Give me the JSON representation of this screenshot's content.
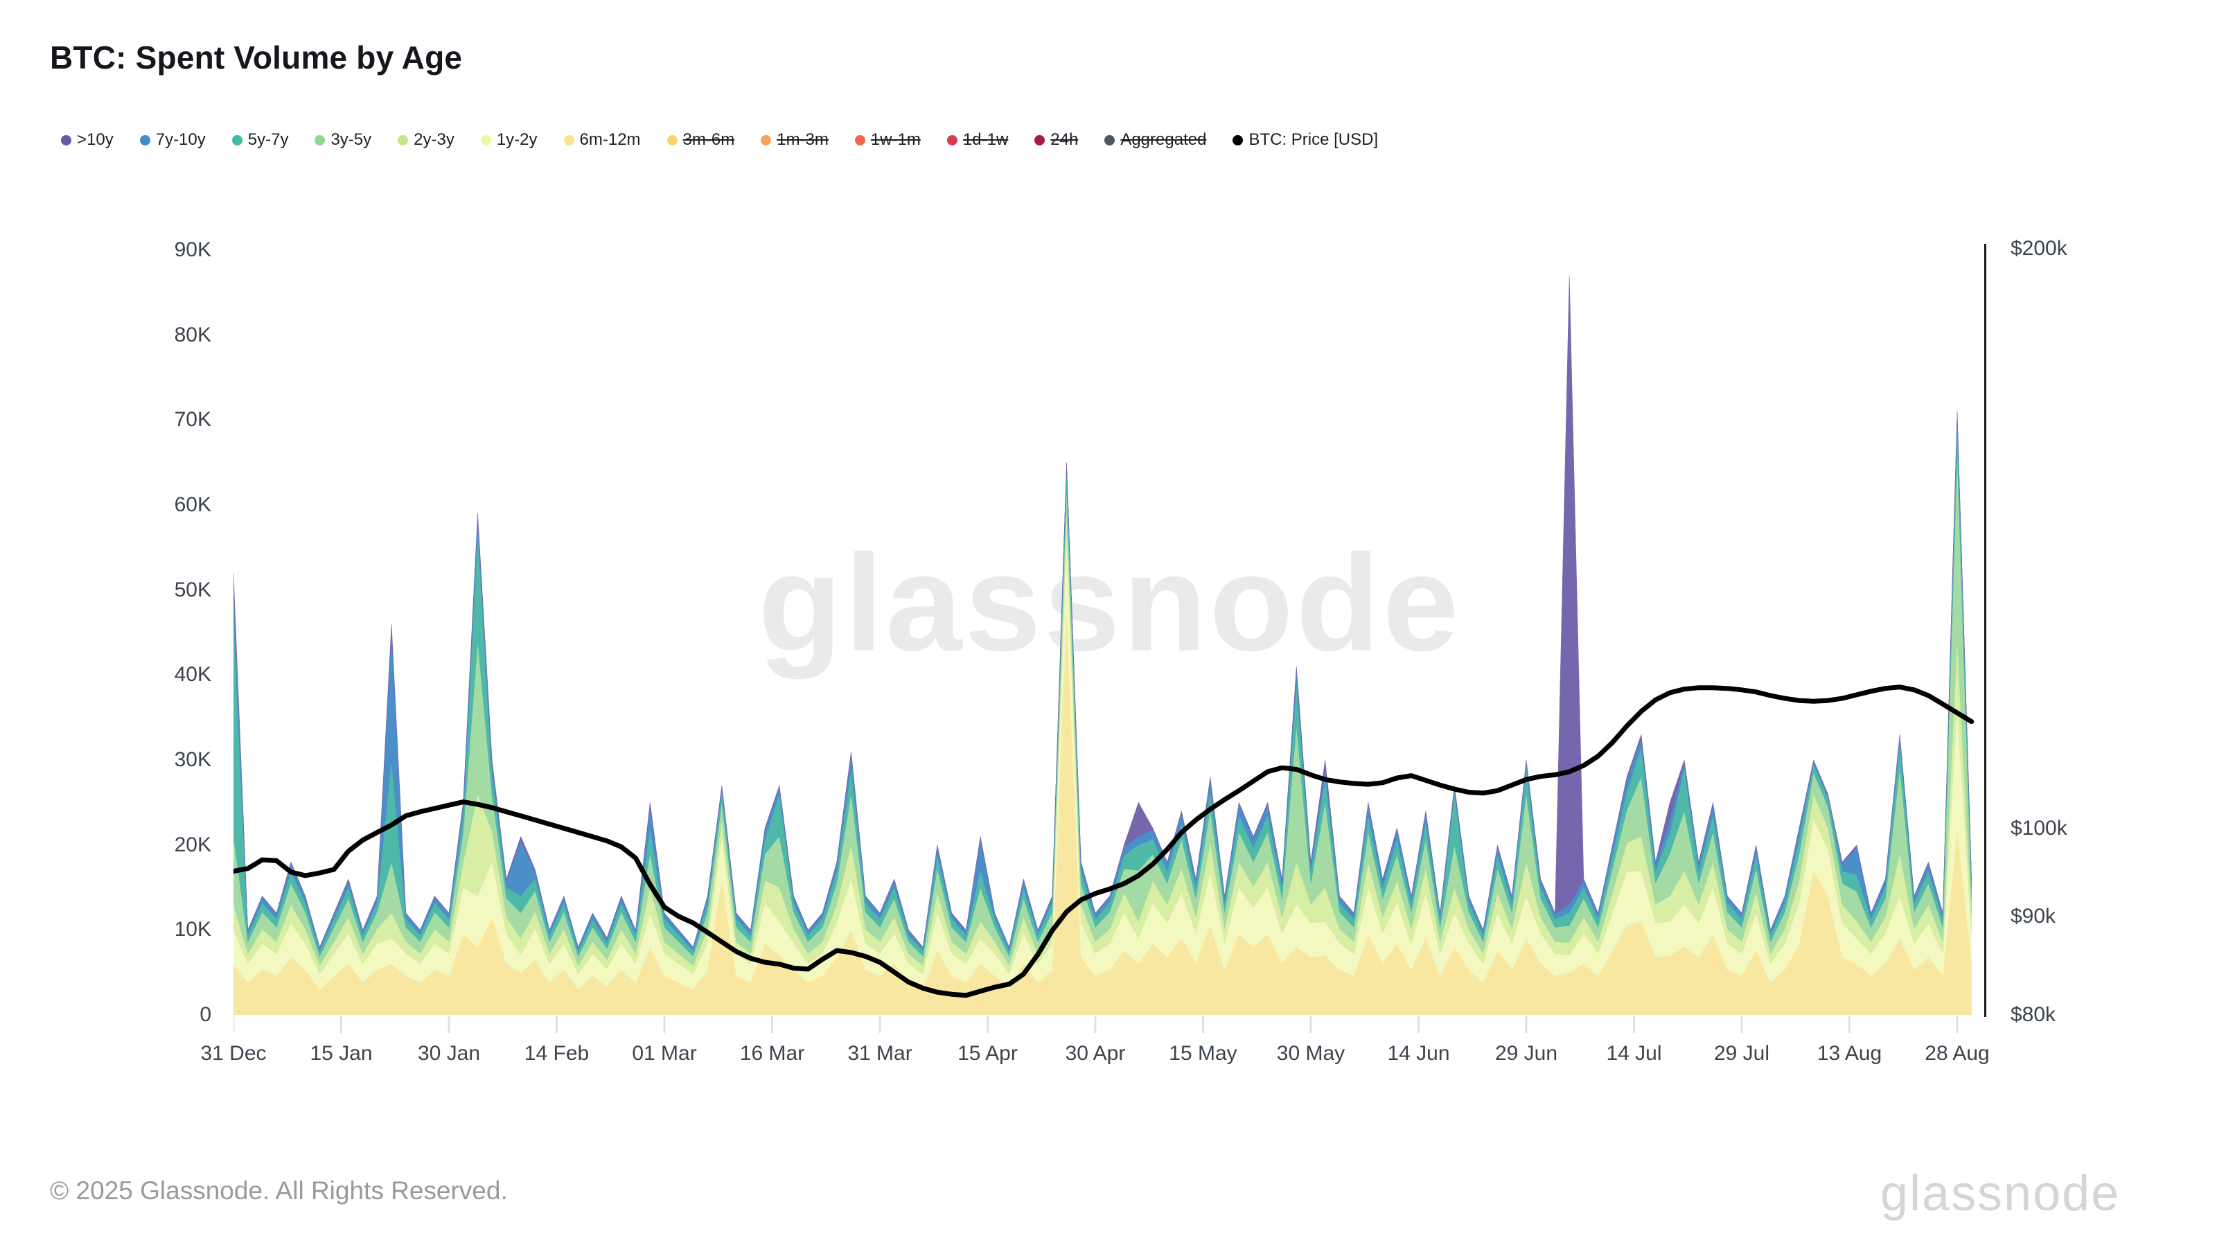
{
  "title": "BTC: Spent Volume by Age",
  "watermark": "glassnode",
  "footer": {
    "copyright": "© 2025 Glassnode. All Rights Reserved.",
    "logo": "glassnode"
  },
  "legend": [
    {
      "label": ">10y",
      "color": "#6859A8",
      "struck": false
    },
    {
      "label": "7y-10y",
      "color": "#3D8EC6",
      "struck": false
    },
    {
      "label": "5y-7y",
      "color": "#3FBEA3",
      "struck": false
    },
    {
      "label": "3y-5y",
      "color": "#8FD68E",
      "struck": false
    },
    {
      "label": "2y-3y",
      "color": "#C5E787",
      "struck": false
    },
    {
      "label": "1y-2y",
      "color": "#EDF7A3",
      "struck": false
    },
    {
      "label": "6m-12m",
      "color": "#F8E58B",
      "struck": false
    },
    {
      "label": "3m-6m",
      "color": "#FBD36E",
      "struck": true
    },
    {
      "label": "1m-3m",
      "color": "#F9A05A",
      "struck": true
    },
    {
      "label": "1w-1m",
      "color": "#F2674B",
      "struck": true
    },
    {
      "label": "1d-1w",
      "color": "#D63C54",
      "struck": true
    },
    {
      "label": "24h",
      "color": "#A21D44",
      "struck": true
    },
    {
      "label": "Aggregated",
      "color": "#4B5563",
      "struck": true
    },
    {
      "label": "BTC: Price [USD]",
      "color": "#000000",
      "struck": false
    }
  ],
  "chart_data": {
    "type": "area",
    "stacked": true,
    "title": "BTC: Spent Volume by Age",
    "x_start_label": "31 Dec",
    "day_step": 2,
    "x_ticks": [
      {
        "label": "31 Dec",
        "day": 0
      },
      {
        "label": "15 Jan",
        "day": 15
      },
      {
        "label": "30 Jan",
        "day": 30
      },
      {
        "label": "14 Feb",
        "day": 45
      },
      {
        "label": "01 Mar",
        "day": 60
      },
      {
        "label": "16 Mar",
        "day": 75
      },
      {
        "label": "31 Mar",
        "day": 90
      },
      {
        "label": "15 Apr",
        "day": 105
      },
      {
        "label": "30 Apr",
        "day": 120
      },
      {
        "label": "15 May",
        "day": 135
      },
      {
        "label": "30 May",
        "day": 150
      },
      {
        "label": "14 Jun",
        "day": 165
      },
      {
        "label": "29 Jun",
        "day": 180
      },
      {
        "label": "14 Jul",
        "day": 195
      },
      {
        "label": "29 Jul",
        "day": 210
      },
      {
        "label": "13 Aug",
        "day": 225
      },
      {
        "label": "28 Aug",
        "day": 240
      }
    ],
    "y_left_ticks": [
      {
        "label": "0",
        "value": 0
      },
      {
        "label": "10K",
        "value": 10
      },
      {
        "label": "20K",
        "value": 20
      },
      {
        "label": "30K",
        "value": 30
      },
      {
        "label": "40K",
        "value": 40
      },
      {
        "label": "50K",
        "value": 50
      },
      {
        "label": "60K",
        "value": 60
      },
      {
        "label": "70K",
        "value": 70
      },
      {
        "label": "80K",
        "value": 80
      },
      {
        "label": "90K",
        "value": 90
      }
    ],
    "y_left_max": 90,
    "y_left_unit": "K BTC",
    "y_right_scale": "log",
    "y_right_ticks": [
      {
        "label": "$80k",
        "value": 80
      },
      {
        "label": "$90k",
        "value": 90
      },
      {
        "label": "$100k",
        "value": 100
      },
      {
        "label": "$200k",
        "value": 200
      }
    ],
    "grid": false,
    "legend_position": "top",
    "series": [
      {
        "name": "6m-12m",
        "color": "#F8E7A0",
        "values": [
          6,
          3.8,
          5.3,
          4.6,
          6.8,
          5.3,
          3,
          4.6,
          6.1,
          3.8,
          5.3,
          6,
          4.6,
          3.8,
          5.3,
          4.6,
          9.5,
          8,
          11.4,
          6.1,
          5,
          6.5,
          3.8,
          5.3,
          3,
          4.6,
          3.4,
          5.3,
          3.8,
          8,
          4.6,
          3.8,
          3,
          5.3,
          16,
          4.6,
          3.8,
          8.4,
          7,
          5.3,
          3.8,
          4.6,
          6.8,
          10,
          5.3,
          4.6,
          6.1,
          3.8,
          3,
          7.6,
          4.6,
          3.8,
          6,
          4.6,
          3,
          6.1,
          3.8,
          5.3,
          48,
          6.8,
          4.6,
          5.3,
          7.6,
          6,
          8.4,
          6.8,
          9.1,
          6.1,
          10.6,
          5.3,
          9.5,
          8,
          9.5,
          6.1,
          8,
          6.8,
          7,
          5.3,
          4.6,
          9.5,
          6.1,
          8.4,
          5.3,
          9.1,
          4.6,
          8,
          5.3,
          3.8,
          7.6,
          5.3,
          9,
          6.1,
          4.6,
          5,
          6.1,
          4.6,
          7.6,
          10.6,
          11,
          6.8,
          7,
          8,
          6.8,
          9.5,
          5.3,
          4.6,
          7.6,
          3.8,
          5.3,
          8.4,
          17,
          14,
          6.8,
          6,
          4.6,
          6.1,
          9,
          5.3,
          6.8,
          4.6,
          22,
          6.1
        ]
      },
      {
        "name": "1y-2y",
        "color": "#F3F8C0",
        "values": [
          4,
          2.2,
          3.1,
          2.6,
          4,
          3.1,
          1.8,
          2.6,
          3.5,
          2.2,
          3.1,
          3,
          2.6,
          2.2,
          3.1,
          2.6,
          5.5,
          6,
          6.6,
          3.5,
          2,
          3.7,
          2.2,
          3.1,
          1.8,
          2.6,
          2,
          3.1,
          2.2,
          4,
          2.6,
          2.2,
          1.8,
          3.1,
          5,
          2.6,
          2.2,
          4.8,
          4,
          3.1,
          2.2,
          2.6,
          4,
          6,
          3.1,
          2.6,
          3.5,
          2.2,
          1.8,
          4.4,
          2.6,
          2.2,
          3,
          2.6,
          1.8,
          3.5,
          2.2,
          3.1,
          8,
          4,
          2.6,
          3.1,
          4.4,
          3,
          4.8,
          4,
          5.3,
          3.5,
          6.2,
          3.1,
          5.5,
          4.6,
          5.5,
          3.5,
          5,
          4,
          4,
          3.1,
          2.6,
          5.5,
          3.5,
          4.8,
          3.1,
          5.3,
          2.6,
          4,
          3.1,
          2.2,
          4.4,
          3.1,
          5,
          3.5,
          2.6,
          2,
          3.5,
          2.6,
          4.4,
          6.2,
          6,
          4,
          4,
          5,
          4,
          5.5,
          3.1,
          2.6,
          4.4,
          2.2,
          3.1,
          4.8,
          6,
          5.5,
          4,
          3,
          2.6,
          3.5,
          5,
          3.1,
          4,
          2.6,
          14,
          3.5
        ]
      },
      {
        "name": "2y-3y",
        "color": "#D7EEA4",
        "values": [
          3,
          1.2,
          1.7,
          1.4,
          2.2,
          1.7,
          1,
          1.4,
          1.9,
          1.2,
          1.7,
          3,
          1.4,
          1.2,
          1.7,
          1.4,
          3,
          12,
          3.6,
          1.9,
          2,
          2,
          1.2,
          1.7,
          1,
          1.4,
          1.1,
          1.7,
          1.2,
          3,
          1.4,
          1.2,
          1,
          1.7,
          2,
          1.4,
          1.2,
          2.6,
          4,
          1.7,
          1.2,
          1.4,
          2.2,
          4,
          1.7,
          1.4,
          1.9,
          1.2,
          1,
          2.4,
          1.4,
          1.2,
          2,
          1.4,
          1,
          1.9,
          1.2,
          1.7,
          3,
          2.2,
          1.4,
          1.7,
          2.4,
          2,
          2.6,
          2.2,
          2.9,
          1.9,
          3.4,
          1.7,
          3,
          2.5,
          3,
          1.9,
          5,
          2.2,
          4,
          1.7,
          1.4,
          3,
          1.9,
          2.6,
          1.7,
          2.9,
          1.4,
          3,
          1.7,
          1.2,
          2.4,
          1.7,
          4,
          1.9,
          1.4,
          1.5,
          1.9,
          1.4,
          2.4,
          3.4,
          4,
          2.2,
          3,
          4,
          2.2,
          3,
          1.7,
          1.4,
          2.4,
          1.2,
          1.7,
          2.6,
          3,
          2.5,
          2.2,
          2,
          1.4,
          1.9,
          5,
          1.7,
          2.2,
          1.4,
          8,
          1.9
        ]
      },
      {
        "name": "3y-5y",
        "color": "#A4DBA4",
        "values": [
          8,
          1.4,
          2,
          1.7,
          2.5,
          2,
          1.1,
          1.7,
          2.2,
          1.4,
          2,
          6,
          1.7,
          1.4,
          2,
          1.7,
          3.5,
          18,
          4.2,
          2.2,
          3,
          2.4,
          1.4,
          2,
          1.1,
          1.7,
          1.3,
          2,
          1.4,
          4,
          1.7,
          1.4,
          1.1,
          2,
          2,
          1.7,
          1.4,
          3.1,
          6,
          2,
          1.4,
          1.7,
          2.5,
          6,
          2,
          1.7,
          2.2,
          1.4,
          1.1,
          2.8,
          1.7,
          1.4,
          4,
          1.7,
          1.1,
          2.2,
          1.4,
          2,
          3,
          2.5,
          1.7,
          2,
          2.8,
          6,
          3.1,
          2.5,
          3.4,
          2.2,
          3.9,
          2,
          3.5,
          2.9,
          3.5,
          2.2,
          16,
          2.5,
          10,
          2,
          1.7,
          3.5,
          2.2,
          3.1,
          2,
          3.4,
          1.7,
          5,
          2,
          1.4,
          2.8,
          2,
          8,
          2.2,
          1.7,
          2,
          2.2,
          1.7,
          2.8,
          3.9,
          7,
          2.5,
          5,
          7,
          2.5,
          3.5,
          2,
          1.7,
          2.8,
          1.4,
          2,
          3.1,
          2.5,
          2.5,
          2.5,
          3.5,
          1.7,
          2.2,
          10,
          2,
          2.5,
          1.7,
          22,
          2.2
        ]
      },
      {
        "name": "5y-7y",
        "color": "#4EB9A9",
        "values": [
          26,
          0.8,
          1.1,
          1,
          1.4,
          1.1,
          0.6,
          1,
          1.3,
          0.8,
          1.1,
          12,
          1,
          0.8,
          1.1,
          1,
          2,
          13,
          2.4,
          1.3,
          2,
          1.4,
          0.8,
          1.1,
          0.6,
          1,
          0.7,
          1.1,
          0.8,
          3,
          1,
          0.8,
          0.6,
          1.1,
          1.2,
          1,
          0.8,
          1.8,
          5,
          1.1,
          0.8,
          1,
          1.4,
          3,
          1.1,
          1,
          1.3,
          0.8,
          0.6,
          1.6,
          1,
          0.8,
          2,
          1,
          0.6,
          1.3,
          0.8,
          1.1,
          2,
          1.4,
          1,
          1.1,
          1.6,
          3,
          1.8,
          1.4,
          1.9,
          1.3,
          2.2,
          1.1,
          2,
          1.7,
          2,
          1.3,
          5,
          1.4,
          3,
          1.1,
          1,
          2,
          1.3,
          1.8,
          1.1,
          1.9,
          1,
          6,
          1.1,
          0.8,
          1.6,
          1.1,
          3,
          1.3,
          1,
          1.5,
          1.3,
          1,
          1.6,
          2.2,
          3.5,
          1.4,
          2.5,
          5,
          1.4,
          2,
          1.1,
          1,
          1.6,
          0.8,
          1.1,
          1.8,
          1,
          1,
          1.4,
          2,
          1,
          1.3,
          3,
          1.1,
          1.4,
          1,
          4,
          1.3
        ]
      },
      {
        "name": "7y-10y",
        "color": "#4B8FC8",
        "values": [
          4,
          0.5,
          0.7,
          0.6,
          0.9,
          0.7,
          0.4,
          0.6,
          0.8,
          0.5,
          0.7,
          15,
          0.6,
          0.5,
          0.7,
          0.6,
          1.3,
          1.5,
          1.5,
          0.8,
          6.5,
          0.9,
          0.5,
          0.7,
          0.4,
          0.6,
          0.5,
          0.7,
          0.5,
          2.5,
          0.6,
          0.5,
          0.4,
          0.7,
          0.6,
          0.6,
          0.5,
          1.1,
          0.8,
          0.7,
          0.5,
          0.6,
          0.9,
          1.6,
          0.7,
          0.6,
          0.8,
          0.5,
          0.4,
          1,
          0.6,
          0.5,
          3.6,
          0.6,
          0.4,
          0.8,
          0.5,
          0.7,
          0.8,
          0.9,
          0.6,
          0.7,
          1,
          1,
          1.1,
          0.9,
          1.2,
          0.8,
          1.4,
          0.7,
          1.3,
          1.1,
          1.3,
          0.8,
          1.6,
          0.9,
          1,
          0.7,
          0.6,
          1.3,
          0.8,
          1.1,
          0.7,
          1.2,
          0.6,
          0.8,
          0.7,
          0.5,
          1,
          0.7,
          0.8,
          0.8,
          0.6,
          1,
          0.8,
          0.6,
          1,
          1.4,
          1,
          0.9,
          1.5,
          0.8,
          0.9,
          1.3,
          0.7,
          0.6,
          1,
          0.5,
          0.7,
          1.1,
          0.4,
          0.4,
          0.9,
          3.2,
          0.6,
          0.8,
          0.8,
          0.7,
          0.9,
          0.6,
          0.8,
          0.8
        ]
      },
      {
        "name": ">10y",
        "color": "#7566AD",
        "values": [
          1,
          0.1,
          0.1,
          0.1,
          0.2,
          0.1,
          0.1,
          0.1,
          0.2,
          0.1,
          0.1,
          1,
          0.1,
          0.1,
          0.1,
          0.1,
          0.3,
          0.5,
          0.3,
          0.2,
          0.5,
          0.2,
          0.1,
          0.1,
          0.1,
          0.1,
          0.1,
          0.1,
          0.1,
          0.5,
          0.1,
          0.1,
          0.1,
          0.1,
          0.2,
          0.1,
          0.1,
          0.2,
          0.2,
          0.1,
          0.1,
          0.1,
          0.2,
          0.4,
          0.1,
          0.1,
          0.2,
          0.1,
          0.1,
          0.2,
          0.1,
          0.1,
          0.4,
          0.1,
          0.1,
          0.2,
          0.1,
          0.1,
          0.2,
          0.2,
          0.1,
          0.1,
          0.2,
          4,
          0.2,
          0.2,
          0.2,
          0.2,
          0.3,
          0.1,
          0.2,
          0.2,
          0.2,
          0.2,
          0.4,
          0.2,
          1,
          0.1,
          0.1,
          0.2,
          0.2,
          0.2,
          0.1,
          0.2,
          0.1,
          0.2,
          0.1,
          0.1,
          0.2,
          0.1,
          0.2,
          0.2,
          0.1,
          74,
          0.2,
          0.1,
          0.2,
          0.3,
          0.5,
          0.2,
          2,
          0.2,
          0.2,
          0.2,
          0.1,
          0.1,
          0.2,
          0.1,
          0.1,
          0.2,
          0.1,
          0.1,
          0.2,
          0.3,
          0.1,
          0.2,
          0.2,
          0.1,
          0.2,
          0.1,
          0.2,
          0.2
        ]
      }
    ],
    "price_series": {
      "name": "BTC: Price [USD]",
      "color": "#000000",
      "unit": "$k",
      "values": [
        95,
        95.3,
        96.3,
        96.2,
        94.9,
        94.5,
        94.8,
        95.2,
        97.3,
        98.6,
        99.5,
        100.4,
        101.5,
        102,
        102.4,
        102.8,
        103.2,
        102.9,
        102.5,
        102,
        101.5,
        101,
        100.5,
        100,
        99.5,
        99,
        98.5,
        97.8,
        96.5,
        93.5,
        91,
        90,
        89.3,
        88.3,
        87.3,
        86.3,
        85.6,
        85.2,
        85,
        84.6,
        84.5,
        85.5,
        86.4,
        86.2,
        85.8,
        85.2,
        84.2,
        83.2,
        82.6,
        82.2,
        82,
        81.9,
        82.3,
        82.7,
        83,
        84,
        86,
        88.5,
        90.5,
        91.8,
        92.5,
        93,
        93.6,
        94.5,
        95.8,
        97.5,
        99.5,
        101,
        102.3,
        103.5,
        104.6,
        105.8,
        107,
        107.5,
        107.3,
        106.6,
        106,
        105.7,
        105.5,
        105.4,
        105.6,
        106.2,
        106.5,
        105.9,
        105.3,
        104.8,
        104.4,
        104.3,
        104.6,
        105.3,
        106,
        106.4,
        106.6,
        107,
        107.8,
        109,
        110.8,
        113,
        115,
        116.6,
        117.6,
        118.1,
        118.3,
        118.3,
        118.2,
        118,
        117.7,
        117.2,
        116.8,
        116.5,
        116.4,
        116.5,
        116.8,
        117.3,
        117.8,
        118.2,
        118.4,
        118,
        117.2,
        116,
        114.8,
        113.6
      ]
    }
  }
}
